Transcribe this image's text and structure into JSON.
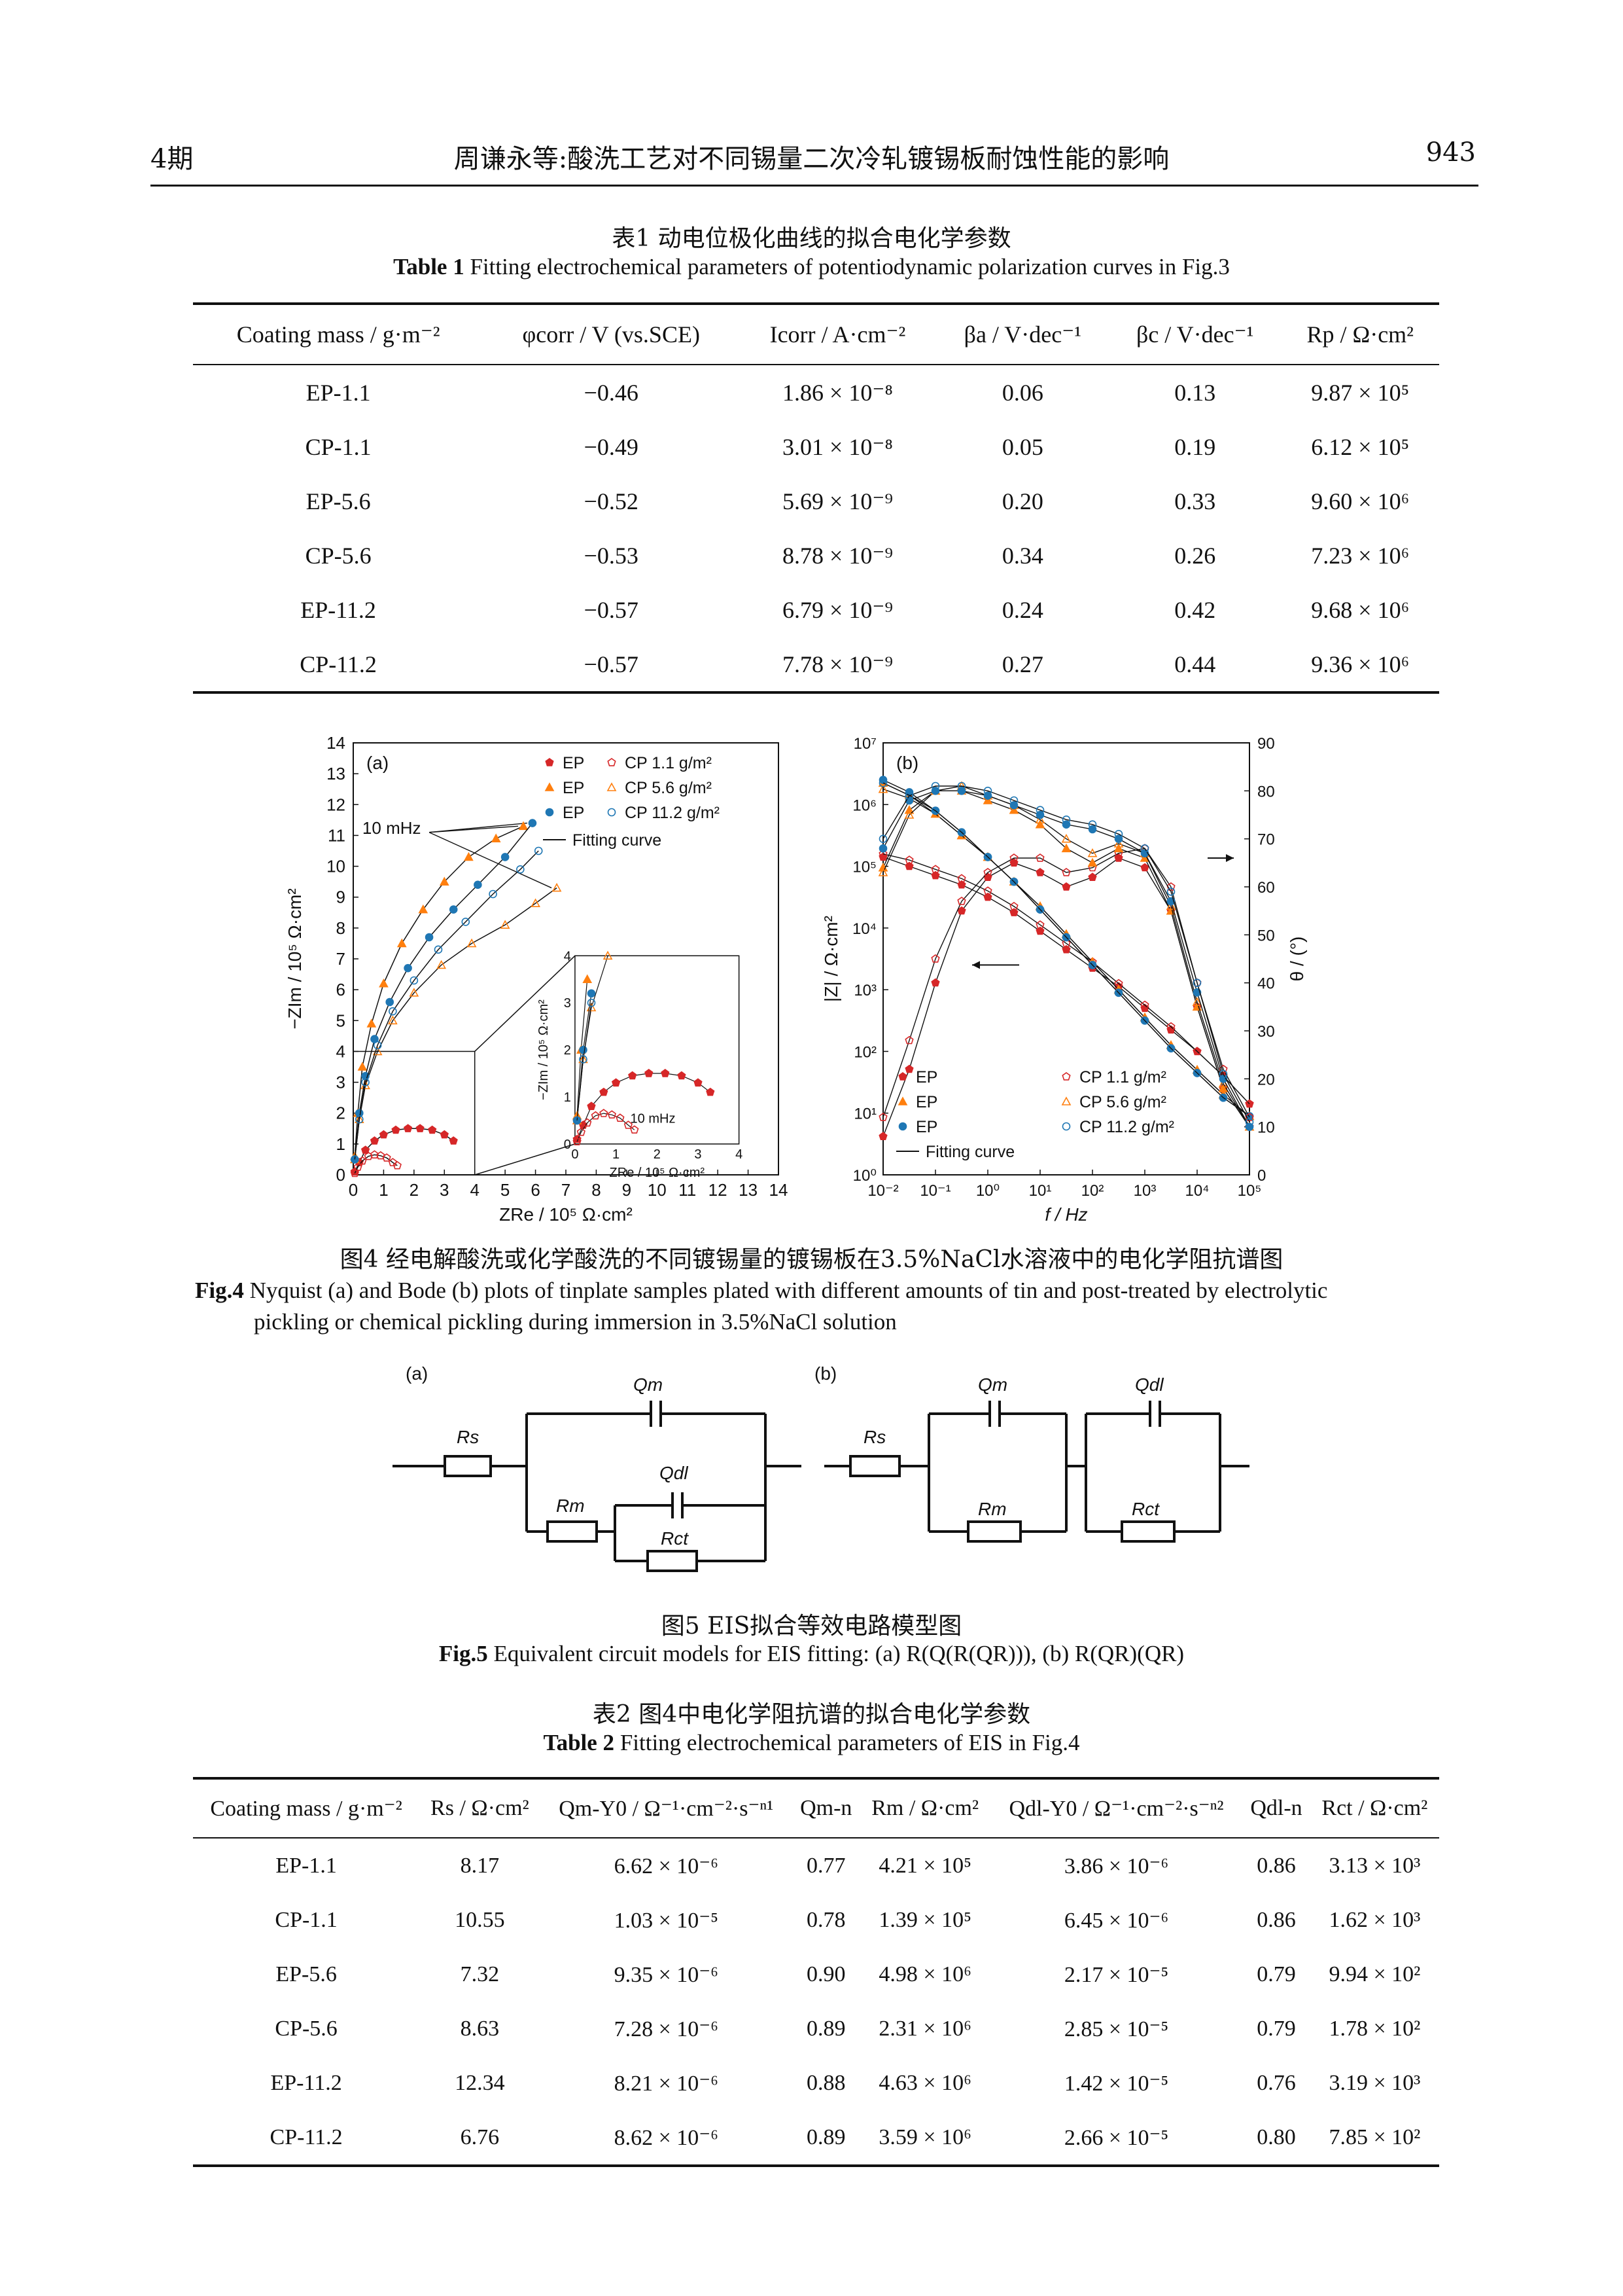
{
  "header": {
    "issue": "4期",
    "running_title": "周谦永等:酸洗工艺对不同锡量二次冷轧镀锡板耐蚀性能的影响",
    "page_number": "943"
  },
  "table1": {
    "caption_zh": "表1 动电位极化曲线的拟合电化学参数",
    "caption_en_bold": "Table 1",
    "caption_en": "Fitting electrochemical parameters of potentiodynamic polarization curves in Fig.3",
    "columns": [
      "Coating mass / g·m⁻²",
      "φcorr / V (vs.SCE)",
      "Icorr / A·cm⁻²",
      "βa / V·dec⁻¹",
      "βc / V·dec⁻¹",
      "Rp / Ω·cm²"
    ],
    "rows": [
      [
        "EP-1.1",
        "−0.46",
        "1.86 × 10⁻⁸",
        "0.06",
        "0.13",
        "9.87 × 10⁵"
      ],
      [
        "CP-1.1",
        "−0.49",
        "3.01 × 10⁻⁸",
        "0.05",
        "0.19",
        "6.12 × 10⁵"
      ],
      [
        "EP-5.6",
        "−0.52",
        "5.69 × 10⁻⁹",
        "0.20",
        "0.33",
        "9.60 × 10⁶"
      ],
      [
        "CP-5.6",
        "−0.53",
        "8.78 × 10⁻⁹",
        "0.34",
        "0.26",
        "7.23 × 10⁶"
      ],
      [
        "EP-11.2",
        "−0.57",
        "6.79 × 10⁻⁹",
        "0.24",
        "0.42",
        "9.68 × 10⁶"
      ],
      [
        "CP-11.2",
        "−0.57",
        "7.78 × 10⁻⁹",
        "0.27",
        "0.44",
        "9.36 × 10⁶"
      ]
    ]
  },
  "figure4": {
    "caption_zh": "图4 经电解酸洗或化学酸洗的不同镀锡量的镀锡板在3.5%NaCl水溶液中的电化学阻抗谱图",
    "caption_en_bold": "Fig.4",
    "caption_en_line1": "Nyquist (a) and Bode (b) plots of tinplate samples plated with different amounts of tin and post-treated by electrolytic",
    "caption_en_line2": "pickling or chemical pickling during immersion in 3.5%NaCl solution",
    "panel_a": {
      "label": "(a)",
      "xlabel": "ZRe / 10⁵ Ω·cm²",
      "ylabel": "−ZIm / 10⁵ Ω·cm²",
      "annotation": "10 mHz",
      "inset_annotation": "10 mHz",
      "legend": [
        "EP",
        "CP 1.1 g/m²",
        "EP",
        "CP 5.6 g/m²",
        "EP",
        "CP 11.2 g/m²",
        "Fitting curve"
      ]
    },
    "panel_b": {
      "label": "(b)",
      "xlabel": "f / Hz",
      "ylabel_left": "|Z| / Ω·cm²",
      "ylabel_right": "θ / (°)",
      "legend": [
        "EP",
        "CP 1.1 g/m²",
        "EP",
        "CP 5.6 g/m²",
        "EP",
        "CP 11.2 g/m²",
        "Fitting curve"
      ]
    }
  },
  "chart_data": [
    {
      "type": "scatter",
      "title": "(a)",
      "xlabel": "ZRe / 10⁵ Ω·cm²",
      "ylabel": "−ZIm / 10⁵ Ω·cm²",
      "xlim": [
        0,
        14
      ],
      "ylim": [
        0,
        14
      ],
      "x_ticks": [
        0,
        1,
        2,
        3,
        4,
        5,
        6,
        7,
        8,
        9,
        10,
        11,
        12,
        13,
        14
      ],
      "y_ticks": [
        0,
        1,
        2,
        3,
        4,
        5,
        6,
        7,
        8,
        9,
        10,
        11,
        12,
        13,
        14
      ],
      "colors": {
        "1.1": "#d62728",
        "5.6": "#ff7f0e",
        "11.2": "#1f77b4"
      },
      "series": [
        {
          "name": "EP 1.1 g/m²",
          "marker": "filled",
          "x": [
            0.05,
            0.2,
            0.4,
            0.7,
            1.0,
            1.4,
            1.8,
            2.2,
            2.6,
            3.0,
            3.3
          ],
          "y": [
            0.1,
            0.4,
            0.8,
            1.1,
            1.3,
            1.45,
            1.5,
            1.5,
            1.45,
            1.3,
            1.1
          ]
        },
        {
          "name": "CP 1.1 g/m²",
          "marker": "open",
          "x": [
            0.05,
            0.15,
            0.3,
            0.5,
            0.7,
            0.9,
            1.1,
            1.3,
            1.45
          ],
          "y": [
            0.05,
            0.25,
            0.45,
            0.6,
            0.65,
            0.62,
            0.55,
            0.4,
            0.3
          ]
        },
        {
          "name": "EP 5.6 g/m²",
          "marker": "filled",
          "x": [
            0.05,
            0.15,
            0.3,
            0.6,
            1.0,
            1.6,
            2.3,
            3.0,
            3.8,
            4.7,
            5.6
          ],
          "y": [
            0.6,
            2.0,
            3.5,
            4.9,
            6.2,
            7.5,
            8.6,
            9.5,
            10.3,
            10.9,
            11.3
          ]
        },
        {
          "name": "CP 5.6 g/m²",
          "marker": "open",
          "x": [
            0.05,
            0.2,
            0.4,
            0.8,
            1.3,
            2.0,
            2.9,
            3.9,
            5.0,
            6.0,
            6.7
          ],
          "y": [
            0.5,
            1.8,
            2.9,
            4.0,
            5.0,
            5.9,
            6.8,
            7.5,
            8.1,
            8.8,
            9.3
          ]
        },
        {
          "name": "EP 11.2 g/m²",
          "marker": "filled",
          "x": [
            0.05,
            0.2,
            0.4,
            0.7,
            1.2,
            1.8,
            2.5,
            3.3,
            4.1,
            5.0,
            5.9
          ],
          "y": [
            0.5,
            2.0,
            3.2,
            4.4,
            5.6,
            6.7,
            7.7,
            8.6,
            9.4,
            10.3,
            11.4
          ]
        },
        {
          "name": "CP 11.2 g/m²",
          "marker": "open",
          "x": [
            0.05,
            0.2,
            0.4,
            0.8,
            1.3,
            2.0,
            2.8,
            3.7,
            4.6,
            5.5,
            6.1
          ],
          "y": [
            0.5,
            1.8,
            3.0,
            4.2,
            5.3,
            6.3,
            7.3,
            8.2,
            9.1,
            9.9,
            10.5
          ]
        }
      ]
    },
    {
      "type": "line",
      "title": "(b)",
      "xlabel": "f / Hz",
      "ylabel": "|Z| / Ω·cm²",
      "y2label": "θ / (°)",
      "x_scale": "log",
      "y_scale": "log",
      "xlim": [
        0.01,
        100000
      ],
      "ylim": [
        1,
        10000000
      ],
      "y2lim": [
        0,
        90
      ],
      "x_tick_labels": [
        "10⁻²",
        "10⁻¹",
        "10⁰",
        "10¹",
        "10²",
        "10³",
        "10⁴",
        "10⁵"
      ],
      "y_tick_labels": [
        "10⁰",
        "10¹",
        "10²",
        "10³",
        "10⁴",
        "10⁵",
        "10⁶",
        "10⁷"
      ],
      "y2_ticks": [
        0,
        10,
        20,
        30,
        40,
        50,
        60,
        70,
        80,
        90
      ],
      "log_f": [
        -2,
        -1.5,
        -1,
        -0.5,
        0,
        0.5,
        1,
        1.5,
        2,
        2.5,
        3,
        3.5,
        4,
        4.5,
        5
      ],
      "series": [
        {
          "name": "EP 1.1 g/m²",
          "quantity": "logZ",
          "values": [
            5.15,
            5.0,
            4.85,
            4.7,
            4.5,
            4.25,
            3.95,
            3.65,
            3.35,
            3.05,
            2.7,
            2.35,
            2.0,
            1.6,
            1.15
          ]
        },
        {
          "name": "CP 1.1 g/m²",
          "quantity": "logZ",
          "values": [
            5.2,
            5.1,
            4.95,
            4.8,
            4.6,
            4.35,
            4.05,
            3.75,
            3.45,
            3.1,
            2.75,
            2.4,
            2.0,
            1.6,
            1.15
          ]
        },
        {
          "name": "EP 5.6 g/m²",
          "quantity": "logZ",
          "values": [
            6.35,
            6.15,
            5.85,
            5.5,
            5.15,
            4.75,
            4.35,
            3.9,
            3.45,
            3.0,
            2.55,
            2.1,
            1.7,
            1.3,
            0.95
          ]
        },
        {
          "name": "CP 5.6 g/m²",
          "quantity": "logZ",
          "values": [
            6.25,
            6.1,
            5.85,
            5.5,
            5.15,
            4.75,
            4.35,
            3.9,
            3.45,
            3.0,
            2.55,
            2.1,
            1.7,
            1.3,
            0.95
          ]
        },
        {
          "name": "EP 11.2 g/m²",
          "quantity": "logZ",
          "values": [
            6.4,
            6.2,
            5.9,
            5.55,
            5.15,
            4.75,
            4.3,
            3.85,
            3.4,
            2.95,
            2.5,
            2.05,
            1.65,
            1.25,
            0.95
          ]
        },
        {
          "name": "CP 11.2 g/m²",
          "quantity": "logZ",
          "values": [
            6.35,
            6.15,
            5.9,
            5.55,
            5.15,
            4.75,
            4.3,
            3.85,
            3.4,
            2.95,
            2.5,
            2.05,
            1.65,
            1.25,
            0.95
          ]
        },
        {
          "name": "EP 1.1 g/m²",
          "quantity": "theta",
          "values": [
            8,
            22,
            40,
            55,
            62,
            65,
            63,
            60,
            62,
            66,
            64,
            55,
            35,
            18,
            10
          ]
        },
        {
          "name": "CP 1.1 g/m²",
          "quantity": "theta",
          "values": [
            12,
            28,
            45,
            57,
            63,
            66,
            66,
            63,
            64,
            67,
            68,
            60,
            40,
            22,
            12
          ]
        },
        {
          "name": "EP 5.6 g/m²",
          "quantity": "theta",
          "values": [
            64,
            76,
            80,
            80,
            78,
            76,
            73,
            68,
            65,
            68,
            66,
            55,
            35,
            18,
            10
          ]
        },
        {
          "name": "CP 5.6 g/m²",
          "quantity": "theta",
          "values": [
            63,
            75,
            80,
            81,
            79,
            77,
            74,
            70,
            67,
            69,
            67,
            56,
            36,
            19,
            10
          ]
        },
        {
          "name": "EP 11.2 g/m²",
          "quantity": "theta",
          "values": [
            68,
            78,
            80,
            80,
            79,
            77,
            75,
            73,
            72,
            70,
            67,
            57,
            38,
            20,
            10
          ]
        },
        {
          "name": "CP 11.2 g/m²",
          "quantity": "theta",
          "values": [
            70,
            79,
            81,
            81,
            80,
            78,
            76,
            74,
            73,
            71,
            68,
            59,
            40,
            21,
            11
          ]
        }
      ]
    }
  ],
  "figure5": {
    "caption_zh": "图5 EIS拟合等效电路模型图",
    "caption_en_bold": "Fig.5",
    "caption_en": "Equivalent circuit models for EIS fitting: (a) R(Q(R(QR))), (b) R(QR)(QR)",
    "panel_a": {
      "label": "(a)",
      "Rs": "Rs",
      "Qm": "Qm",
      "Rm": "Rm",
      "Qdl": "Qdl",
      "Rct": "Rct"
    },
    "panel_b": {
      "label": "(b)",
      "Rs": "Rs",
      "Qm": "Qm",
      "Rm": "Rm",
      "Qdl": "Qdl",
      "Rct": "Rct"
    }
  },
  "table2": {
    "caption_zh": "表2 图4中电化学阻抗谱的拟合电化学参数",
    "caption_en_bold": "Table 2",
    "caption_en": "Fitting electrochemical parameters of EIS in Fig.4",
    "columns": [
      "Coating mass / g·m⁻²",
      "Rs / Ω·cm²",
      "Qm-Y0 / Ω⁻¹·cm⁻²·s⁻ⁿ¹",
      "Qm-n",
      "Rm / Ω·cm²",
      "Qdl-Y0 / Ω⁻¹·cm⁻²·s⁻ⁿ²",
      "Qdl-n",
      "Rct / Ω·cm²"
    ],
    "rows": [
      [
        "EP-1.1",
        "8.17",
        "6.62 × 10⁻⁶",
        "0.77",
        "4.21 × 10⁵",
        "3.86 × 10⁻⁶",
        "0.86",
        "3.13 × 10³"
      ],
      [
        "CP-1.1",
        "10.55",
        "1.03 × 10⁻⁵",
        "0.78",
        "1.39 × 10⁵",
        "6.45 × 10⁻⁶",
        "0.86",
        "1.62 × 10³"
      ],
      [
        "EP-5.6",
        "7.32",
        "9.35 × 10⁻⁶",
        "0.90",
        "4.98 × 10⁶",
        "2.17 × 10⁻⁵",
        "0.79",
        "9.94 × 10²"
      ],
      [
        "CP-5.6",
        "8.63",
        "7.28 × 10⁻⁶",
        "0.89",
        "2.31 × 10⁶",
        "2.85 × 10⁻⁵",
        "0.79",
        "1.78 × 10²"
      ],
      [
        "EP-11.2",
        "12.34",
        "8.21 × 10⁻⁶",
        "0.88",
        "4.63 × 10⁶",
        "1.42 × 10⁻⁵",
        "0.76",
        "3.19 × 10³"
      ],
      [
        "CP-11.2",
        "6.76",
        "8.62 × 10⁻⁶",
        "0.89",
        "3.59 × 10⁶",
        "2.66 × 10⁻⁵",
        "0.80",
        "7.85 × 10²"
      ]
    ]
  }
}
